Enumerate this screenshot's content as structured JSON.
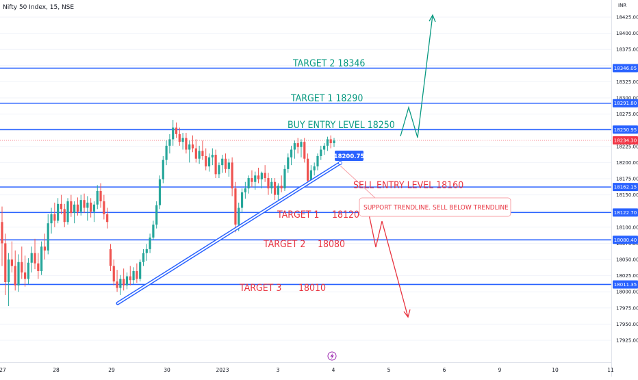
{
  "header": {
    "symbol": "Nifty 50 Index, 15, NSE",
    "currency": "INR"
  },
  "y_axis": {
    "ticks": [
      {
        "value": 18425,
        "label": "18425.00"
      },
      {
        "value": 18400,
        "label": "18400.00"
      },
      {
        "value": 18375,
        "label": "18375.00"
      },
      {
        "value": 18350,
        "label": "18350.00"
      },
      {
        "value": 18325,
        "label": "18325.00"
      },
      {
        "value": 18300,
        "label": "18300.00"
      },
      {
        "value": 18275,
        "label": "18275.00"
      },
      {
        "value": 18250,
        "label": "18250.00"
      },
      {
        "value": 18225,
        "label": "18225.00"
      },
      {
        "value": 18200,
        "label": "18200.00"
      },
      {
        "value": 18175,
        "label": "18175.00"
      },
      {
        "value": 18150,
        "label": "18150.00"
      },
      {
        "value": 18125,
        "label": "18125.00"
      },
      {
        "value": 18100,
        "label": "18100.00"
      },
      {
        "value": 18075,
        "label": "18075.00"
      },
      {
        "value": 18050,
        "label": "18050.00"
      },
      {
        "value": 18025,
        "label": "18025.00"
      },
      {
        "value": 18000,
        "label": "18000.00"
      },
      {
        "value": 17975,
        "label": "17975.00"
      },
      {
        "value": 17950,
        "label": "17950.00"
      },
      {
        "value": 17925,
        "label": "17925.00"
      }
    ]
  },
  "x_axis": {
    "ticks": [
      "27",
      "28",
      "29",
      "30",
      "2023",
      "3",
      "4",
      "5",
      "6",
      "9",
      "10",
      "11"
    ]
  },
  "levels": [
    {
      "price": 18346.05,
      "label": "18346.05"
    },
    {
      "price": 18291.8,
      "label": "18291.80"
    },
    {
      "price": 18250.95,
      "label": "18250.95"
    },
    {
      "price": 18162.15,
      "label": "18162.15"
    },
    {
      "price": 18122.7,
      "label": "18122.70"
    },
    {
      "price": 18080.4,
      "label": "18080.40"
    },
    {
      "price": 18011.35,
      "label": "18011.35"
    }
  ],
  "current_price": {
    "value": 18234.3,
    "label": "18234.30"
  },
  "trendline_price": {
    "value": 18200.75,
    "label": "18200.75"
  },
  "annotations": {
    "target2_buy": "TARGET 2 18346",
    "target1_buy": "TARGET 1 18290",
    "buy_entry": "BUY ENTRY LEVEL 18250",
    "sell_entry": "SELL ENTRY LEVEL 18160",
    "support_note": "SUPPORT TRENDLINE. SELL BELOW TRENDLINE",
    "target1_sell_label": "TARGET 1",
    "target1_sell_value": "18120",
    "target2_sell_label": "TARGET 2",
    "target2_sell_value": "18080",
    "target3_sell_label": "TARGET 3",
    "target3_sell_value": "18010"
  },
  "colors": {
    "level_line": "#2962ff",
    "up_candle": "#26a69a",
    "down_candle": "#ef5350",
    "buy_text": "#089981",
    "sell_text": "#e8333f",
    "axis_text": "#131722",
    "price_tag_bg": "#2962ff",
    "current_tag_bg": "#f23645"
  },
  "candles": [
    [
      18108,
      18132,
      18040,
      18075
    ],
    [
      18075,
      18090,
      17995,
      18015
    ],
    [
      18015,
      18060,
      17978,
      18050
    ],
    [
      18050,
      18078,
      18030,
      18040
    ],
    [
      18040,
      18064,
      18002,
      18010
    ],
    [
      18010,
      18058,
      18000,
      18046
    ],
    [
      18046,
      18070,
      18020,
      18030
    ],
    [
      18030,
      18056,
      18008,
      18020
    ],
    [
      18020,
      18052,
      18012,
      18045
    ],
    [
      18045,
      18070,
      18030,
      18060
    ],
    [
      18060,
      18082,
      18035,
      18044
    ],
    [
      18044,
      18060,
      18020,
      18032
    ],
    [
      18032,
      18078,
      18026,
      18070
    ],
    [
      18070,
      18090,
      18050,
      18064
    ],
    [
      18064,
      18120,
      18058,
      18106
    ],
    [
      18106,
      18130,
      18090,
      18120
    ],
    [
      18120,
      18138,
      18100,
      18110
    ],
    [
      18110,
      18145,
      18106,
      18136
    ],
    [
      18136,
      18150,
      18120,
      18128
    ],
    [
      18128,
      18136,
      18100,
      18108
    ],
    [
      18108,
      18145,
      18104,
      18140
    ],
    [
      18140,
      18150,
      18116,
      18122
    ],
    [
      18122,
      18140,
      18106,
      18135
    ],
    [
      18135,
      18146,
      18118,
      18124
    ],
    [
      18124,
      18150,
      18118,
      18142
    ],
    [
      18142,
      18152,
      18122,
      18130
    ],
    [
      18130,
      18148,
      18110,
      18138
    ],
    [
      18138,
      18145,
      18115,
      18124
    ],
    [
      18124,
      18140,
      18108,
      18135
    ],
    [
      18135,
      18165,
      18128,
      18156
    ],
    [
      18156,
      18168,
      18130,
      18140
    ],
    [
      18140,
      18150,
      18112,
      18120
    ],
    [
      18120,
      18130,
      18098,
      18108
    ],
    [
      18066,
      18074,
      18032,
      18040
    ],
    [
      18040,
      18050,
      18010,
      18016
    ],
    [
      18016,
      18034,
      18000,
      18006
    ],
    [
      18006,
      18026,
      17995,
      18020
    ],
    [
      18020,
      18036,
      18002,
      18010
    ],
    [
      18010,
      18030,
      18004,
      18024
    ],
    [
      18024,
      18040,
      18010,
      18018
    ],
    [
      18018,
      18038,
      18012,
      18032
    ],
    [
      18032,
      18044,
      18014,
      18020
    ],
    [
      18020,
      18050,
      18016,
      18046
    ],
    [
      18046,
      18066,
      18040,
      18060
    ],
    [
      18060,
      18074,
      18048,
      18066
    ],
    [
      18066,
      18090,
      18060,
      18084
    ],
    [
      18084,
      18110,
      18080,
      18104
    ],
    [
      18104,
      18140,
      18098,
      18134
    ],
    [
      18134,
      18180,
      18128,
      18174
    ],
    [
      18174,
      18210,
      18168,
      18204
    ],
    [
      18204,
      18234,
      18196,
      18226
    ],
    [
      18226,
      18244,
      18214,
      18236
    ],
    [
      18236,
      18266,
      18226,
      18254
    ],
    [
      18254,
      18262,
      18238,
      18244
    ],
    [
      18244,
      18254,
      18226,
      18232
    ],
    [
      18232,
      18246,
      18220,
      18238
    ],
    [
      18238,
      18246,
      18214,
      18220
    ],
    [
      18220,
      18234,
      18200,
      18228
    ],
    [
      18228,
      18242,
      18216,
      18222
    ],
    [
      18222,
      18236,
      18200,
      18206
    ],
    [
      18206,
      18226,
      18198,
      18218
    ],
    [
      18218,
      18234,
      18204,
      18210
    ],
    [
      18210,
      18222,
      18188,
      18194
    ],
    [
      18194,
      18214,
      18186,
      18208
    ],
    [
      18208,
      18222,
      18196,
      18212
    ],
    [
      18212,
      18220,
      18176,
      18182
    ],
    [
      18182,
      18200,
      18176,
      18196
    ],
    [
      18196,
      18212,
      18184,
      18206
    ],
    [
      18206,
      18214,
      18184,
      18190
    ],
    [
      18190,
      18206,
      18178,
      18200
    ],
    [
      18200,
      18208,
      18148,
      18160
    ],
    [
      18160,
      18170,
      18092,
      18104
    ],
    [
      18104,
      18138,
      18094,
      18130
    ],
    [
      18130,
      18160,
      18122,
      18154
    ],
    [
      18154,
      18170,
      18144,
      18160
    ],
    [
      18160,
      18180,
      18152,
      18176
    ],
    [
      18176,
      18188,
      18162,
      18170
    ],
    [
      18170,
      18186,
      18158,
      18180
    ],
    [
      18180,
      18192,
      18168,
      18174
    ],
    [
      18174,
      18186,
      18160,
      18184
    ],
    [
      18184,
      18196,
      18170,
      18176
    ],
    [
      18176,
      18184,
      18150,
      18160
    ],
    [
      18160,
      18176,
      18152,
      18170
    ],
    [
      18170,
      18176,
      18142,
      18150
    ],
    [
      18150,
      18168,
      18142,
      18164
    ],
    [
      18164,
      18180,
      18154,
      18160
    ],
    [
      18160,
      18196,
      18156,
      18190
    ],
    [
      18190,
      18214,
      18184,
      18208
    ],
    [
      18208,
      18226,
      18196,
      18220
    ],
    [
      18220,
      18234,
      18206,
      18230
    ],
    [
      18230,
      18238,
      18214,
      18224
    ],
    [
      18224,
      18236,
      18208,
      18232
    ],
    [
      18232,
      18238,
      18200,
      18206
    ],
    [
      18206,
      18214,
      18164,
      18172
    ],
    [
      18172,
      18196,
      18168,
      18188
    ],
    [
      18188,
      18200,
      18180,
      18194
    ],
    [
      18194,
      18214,
      18188,
      18210
    ],
    [
      18210,
      18226,
      18204,
      18220
    ],
    [
      18220,
      18230,
      18212,
      18226
    ],
    [
      18226,
      18240,
      18218,
      18236
    ],
    [
      18236,
      18242,
      18222,
      18230
    ],
    [
      18230,
      18238,
      18224,
      18234
    ]
  ]
}
